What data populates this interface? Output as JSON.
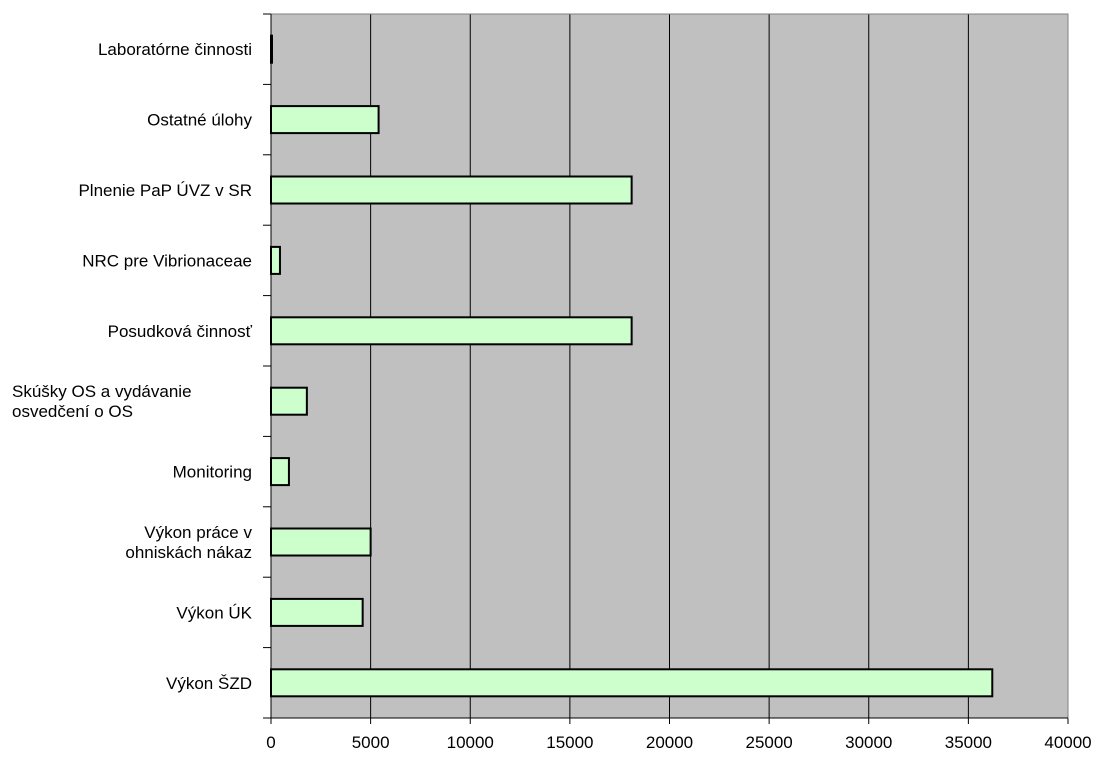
{
  "chart_data": {
    "type": "bar",
    "orientation": "horizontal",
    "categories": [
      "Výkon ŠZD",
      "Výkon ÚK",
      "Výkon práce v ohniskách nákaz",
      "Monitoring",
      "Skúšky OS a vydávanie osvedčení o OS",
      "Posudková činnosť",
      "NRC pre Vibrionaceae",
      "Plnenie PaP ÚVZ v SR",
      "Ostatné úlohy",
      "Laboratórne činnosti"
    ],
    "category_label_lines": [
      [
        "Výkon ŠZD"
      ],
      [
        "Výkon ÚK"
      ],
      [
        "Výkon práce v",
        "ohniskách nákaz"
      ],
      [
        "Monitoring"
      ],
      [
        "Skúšky OS a vydávanie",
        "osvedčení o OS"
      ],
      [
        "Posudková činnosť"
      ],
      [
        "NRC pre Vibrionaceae"
      ],
      [
        "Plnenie PaP ÚVZ v SR"
      ],
      [
        "Ostatné úlohy"
      ],
      [
        "Laboratórne činnosti"
      ]
    ],
    "values": [
      36200,
      4600,
      5000,
      900,
      1800,
      18100,
      450,
      18100,
      5400,
      0
    ],
    "xlim": [
      0,
      40000
    ],
    "xticks": [
      "0",
      "5000",
      "10000",
      "15000",
      "20000",
      "25000",
      "30000",
      "35000",
      "40000"
    ],
    "grid": "vertical",
    "legend": "none",
    "title": "",
    "xlabel": "",
    "ylabel": "",
    "colors": {
      "plot_background": "#c0c0c0",
      "bar_fill": "#ccffcc",
      "bar_stroke": "#000000",
      "grid": "#000000"
    }
  }
}
